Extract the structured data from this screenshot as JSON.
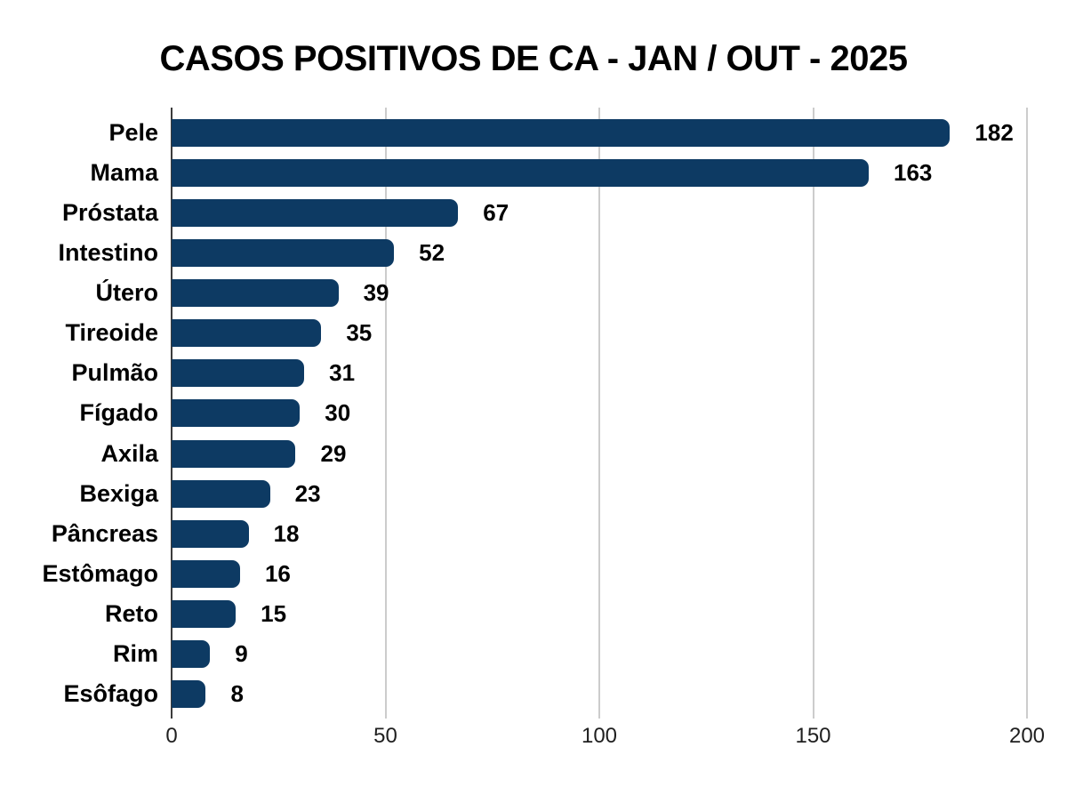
{
  "chart_data": {
    "type": "bar",
    "orientation": "horizontal",
    "title": "CASOS POSITIVOS DE CA - JAN / OUT - 2025",
    "categories": [
      "Pele",
      "Mama",
      "Próstata",
      "Intestino",
      "Útero",
      "Tireoide",
      "Pulmão",
      "Fígado",
      "Axila",
      "Bexiga",
      "Pâncreas",
      "Estômago",
      "Reto",
      "Rim",
      "Esôfago"
    ],
    "values": [
      182,
      163,
      67,
      52,
      39,
      35,
      31,
      30,
      29,
      23,
      18,
      16,
      15,
      9,
      8
    ],
    "value_labels": [
      "182",
      "163",
      "67",
      "52",
      "39",
      "35",
      "31",
      "30",
      "29",
      "23",
      "18",
      "16",
      "15",
      "9",
      "8"
    ],
    "xlabel": "",
    "ylabel": "",
    "xlim": [
      0,
      200
    ],
    "x_ticks": [
      0,
      50,
      100,
      150,
      200
    ],
    "grid": true,
    "legend": false,
    "colors": {
      "bar": "#0d3a63",
      "gridline": "#cccccc",
      "axis_line": "#3c3c3c",
      "text": "#000000",
      "background": "#ffffff"
    }
  }
}
